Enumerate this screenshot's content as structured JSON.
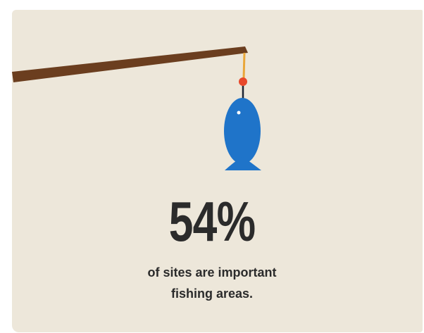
{
  "stat": {
    "value": "54%",
    "caption_line1": "of sites are important",
    "caption_line2": "fishing areas."
  },
  "icons": [
    "fishing-rod-icon",
    "fish-icon"
  ],
  "colors": {
    "background": "#ede7da",
    "rod": "#6b3e1f",
    "line": "#e9a73a",
    "bobber": "#e8482b",
    "fish": "#1f74c9",
    "text": "#2b2b2b"
  }
}
